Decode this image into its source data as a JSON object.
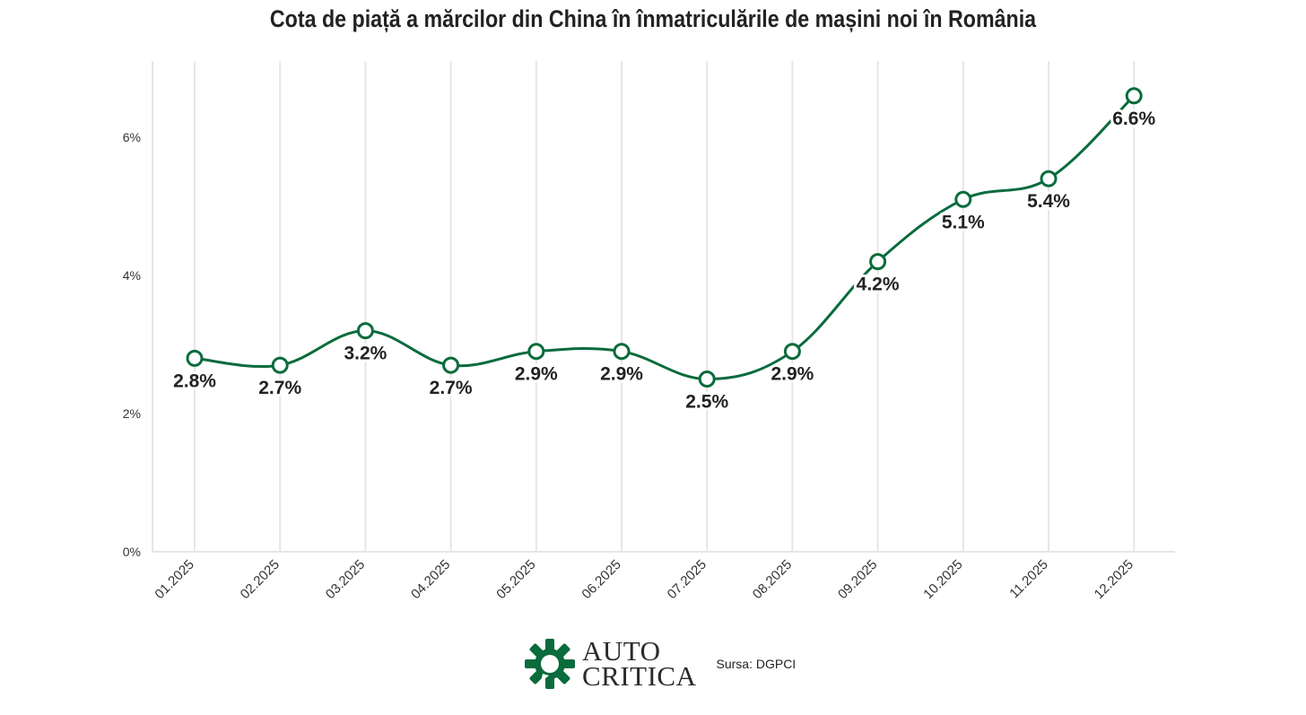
{
  "chart_data": {
    "type": "line",
    "title": "Cota de piață a mărcilor din China în înmatriculările de mașini noi în România",
    "categories": [
      "01.2025",
      "02.2025",
      "03.2025",
      "04.2025",
      "05.2025",
      "06.2025",
      "07.2025",
      "08.2025",
      "09.2025",
      "10.2025",
      "11.2025",
      "12.2025"
    ],
    "values": [
      2.8,
      2.7,
      3.2,
      2.7,
      2.9,
      2.9,
      2.5,
      2.9,
      4.2,
      5.1,
      5.4,
      6.6
    ],
    "data_labels": [
      "2.8%",
      "2.7%",
      "3.2%",
      "2.7%",
      "2.9%",
      "2.9%",
      "2.5%",
      "2.9%",
      "4.2%",
      "5.1%",
      "5.4%",
      "6.6%"
    ],
    "yticks": [
      0,
      2,
      4,
      6
    ],
    "ytick_labels": [
      "0%",
      "2%",
      "4%",
      "6%"
    ],
    "ylim": [
      0,
      7
    ],
    "xlabel": "",
    "ylabel": "",
    "line_color": "#0a6b3c",
    "grid": "vertical",
    "legend": "none"
  },
  "footer": {
    "brand_line1": "AUTO",
    "brand_line2": "CRITICA",
    "source": "Sursa: DGPCI",
    "brand_color": "#0a6b3c"
  }
}
